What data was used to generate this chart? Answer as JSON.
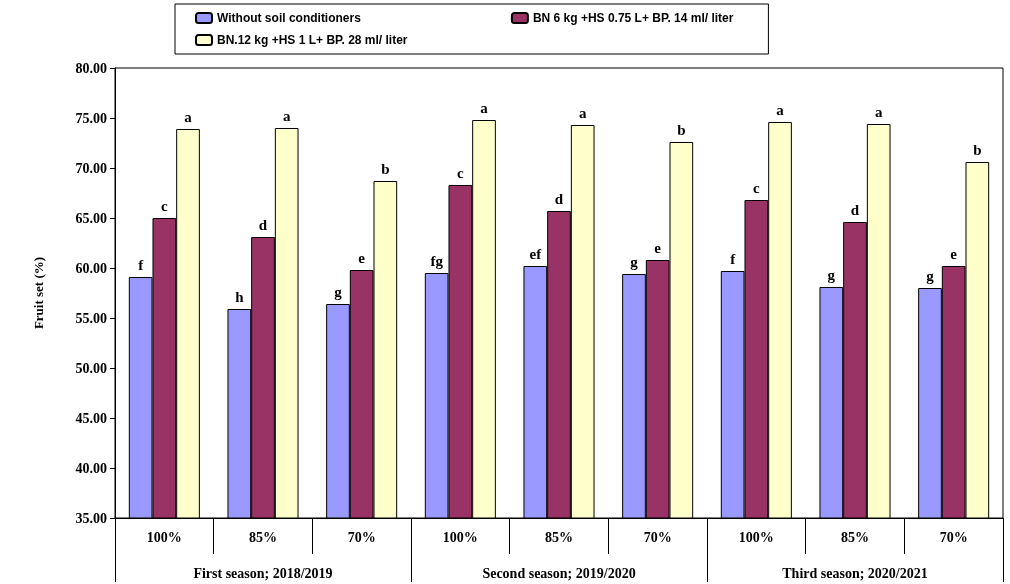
{
  "chart_data": {
    "type": "bar",
    "ylabel": "Fruit set (%)",
    "categories": [
      "100%",
      "85%",
      "70%",
      "100%",
      "85%",
      "70%",
      "100%",
      "85%",
      "70%"
    ],
    "annotations": [
      "First season; 2018/2019",
      "Second season; 2019/2020",
      "Third season; 2020/2021"
    ],
    "series": [
      {
        "name": "Without soil conditioners",
        "color": "#9999ff",
        "values": [
          59.1,
          55.9,
          56.4,
          59.5,
          60.2,
          59.4,
          59.7,
          58.1,
          58.0
        ],
        "value_labels": [
          "f",
          "h",
          "g",
          "fg",
          "ef",
          "g",
          "f",
          "g",
          "g"
        ]
      },
      {
        "name": "BN 6 kg +HS 0.75 L+ BP. 14 ml/ liter",
        "color": "#993366",
        "values": [
          65.0,
          63.1,
          59.8,
          68.3,
          65.7,
          60.8,
          66.8,
          64.6,
          60.2
        ],
        "value_labels": [
          "c",
          "d",
          "e",
          "c",
          "d",
          "e",
          "c",
          "d",
          "e"
        ]
      },
      {
        "name": "BN.12 kg +HS 1 L+ BP. 28 ml/ liter",
        "color": "#ffffcc",
        "values": [
          73.9,
          74.0,
          68.7,
          74.8,
          74.3,
          72.6,
          74.6,
          74.4,
          70.6
        ],
        "value_labels": [
          "a",
          "a",
          "b",
          "a",
          "a",
          "b",
          "a",
          "a",
          "b"
        ]
      }
    ],
    "ylim": [
      35,
      80
    ],
    "yticks": [
      {
        "value": 35,
        "label": "35.00"
      },
      {
        "value": 40,
        "label": "40.00"
      },
      {
        "value": 45,
        "label": "45.00"
      },
      {
        "value": 50,
        "label": "50.00"
      },
      {
        "value": 55,
        "label": "55.00"
      },
      {
        "value": 60,
        "label": "60.00"
      },
      {
        "value": 65,
        "label": "65.00"
      },
      {
        "value": 70,
        "label": "70.00"
      },
      {
        "value": 75,
        "label": "75.00"
      },
      {
        "value": 80,
        "label": "80.00"
      }
    ],
    "grid": false,
    "legend": "top"
  }
}
